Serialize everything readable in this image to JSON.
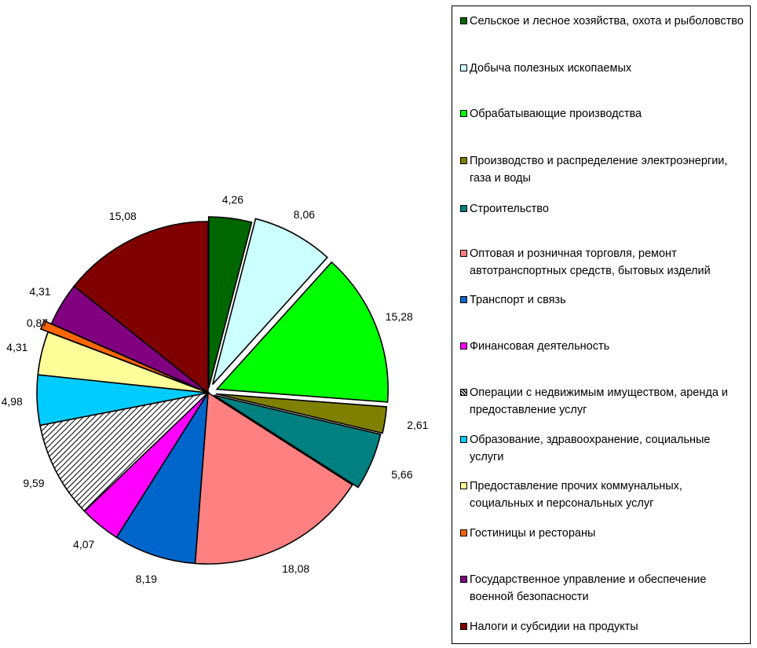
{
  "chart_data": {
    "type": "pie",
    "title": "",
    "exploded": true,
    "legend_position": "right",
    "slices": [
      {
        "label": "Сельское и лесное хозяйства, охота и рыболовство",
        "value": 4.26,
        "display": "4,26",
        "color": "#006600",
        "pattern": null
      },
      {
        "label": "Добыча полезных ископаемых",
        "value": 8.06,
        "display": "8,06",
        "color": "#ccffff",
        "pattern": null
      },
      {
        "label": "Обрабатывающие производства",
        "value": 15.28,
        "display": "15,28",
        "color": "#00ff00",
        "pattern": null
      },
      {
        "label": "Производство и распределение электроэнергии, газа и воды",
        "value": 2.61,
        "display": "2,61",
        "color": "#808000",
        "pattern": null
      },
      {
        "label": "Строительство",
        "value": 5.66,
        "display": "5,66",
        "color": "#008080",
        "pattern": null
      },
      {
        "label": "Оптовая и розничная торговля, ремонт автотранспортных средств, бытовых изделий",
        "value": 18.08,
        "display": "18,08",
        "color": "#ff8080",
        "pattern": null
      },
      {
        "label": "Транспорт и связь",
        "value": 8.19,
        "display": "8,19",
        "color": "#0066cc",
        "pattern": null
      },
      {
        "label": "Финансовая деятельность",
        "value": 4.07,
        "display": "4,07",
        "color": "#ff00ff",
        "pattern": null
      },
      {
        "label": "Операции с недвижимым имуществом, аренда и предоставление услуг",
        "value": 9.59,
        "display": "9,59",
        "color": "#ffffff",
        "pattern": "diagonal-hatch"
      },
      {
        "label": "Образование, здравоохранение, социальные услуги",
        "value": 4.98,
        "display": "4,98",
        "color": "#00ccff",
        "pattern": null
      },
      {
        "label": "Предоставление прочих коммунальных, социальных и персональных услуг",
        "value": 4.31,
        "display": "4,31",
        "color": "#ffff99",
        "pattern": null
      },
      {
        "label": "Гостиницы и рестораны",
        "value": 0.87,
        "display": "0,87",
        "color": "#ff6600",
        "pattern": null
      },
      {
        "label": "Государственное управление и обеспечение военной безопасности",
        "value": 4.31,
        "display": "4,31",
        "color": "#800080",
        "pattern": null
      },
      {
        "label": "Налоги и субсидии на продукты",
        "value": 15.08,
        "display": "15,08",
        "color": "#800000",
        "pattern": null
      }
    ]
  }
}
